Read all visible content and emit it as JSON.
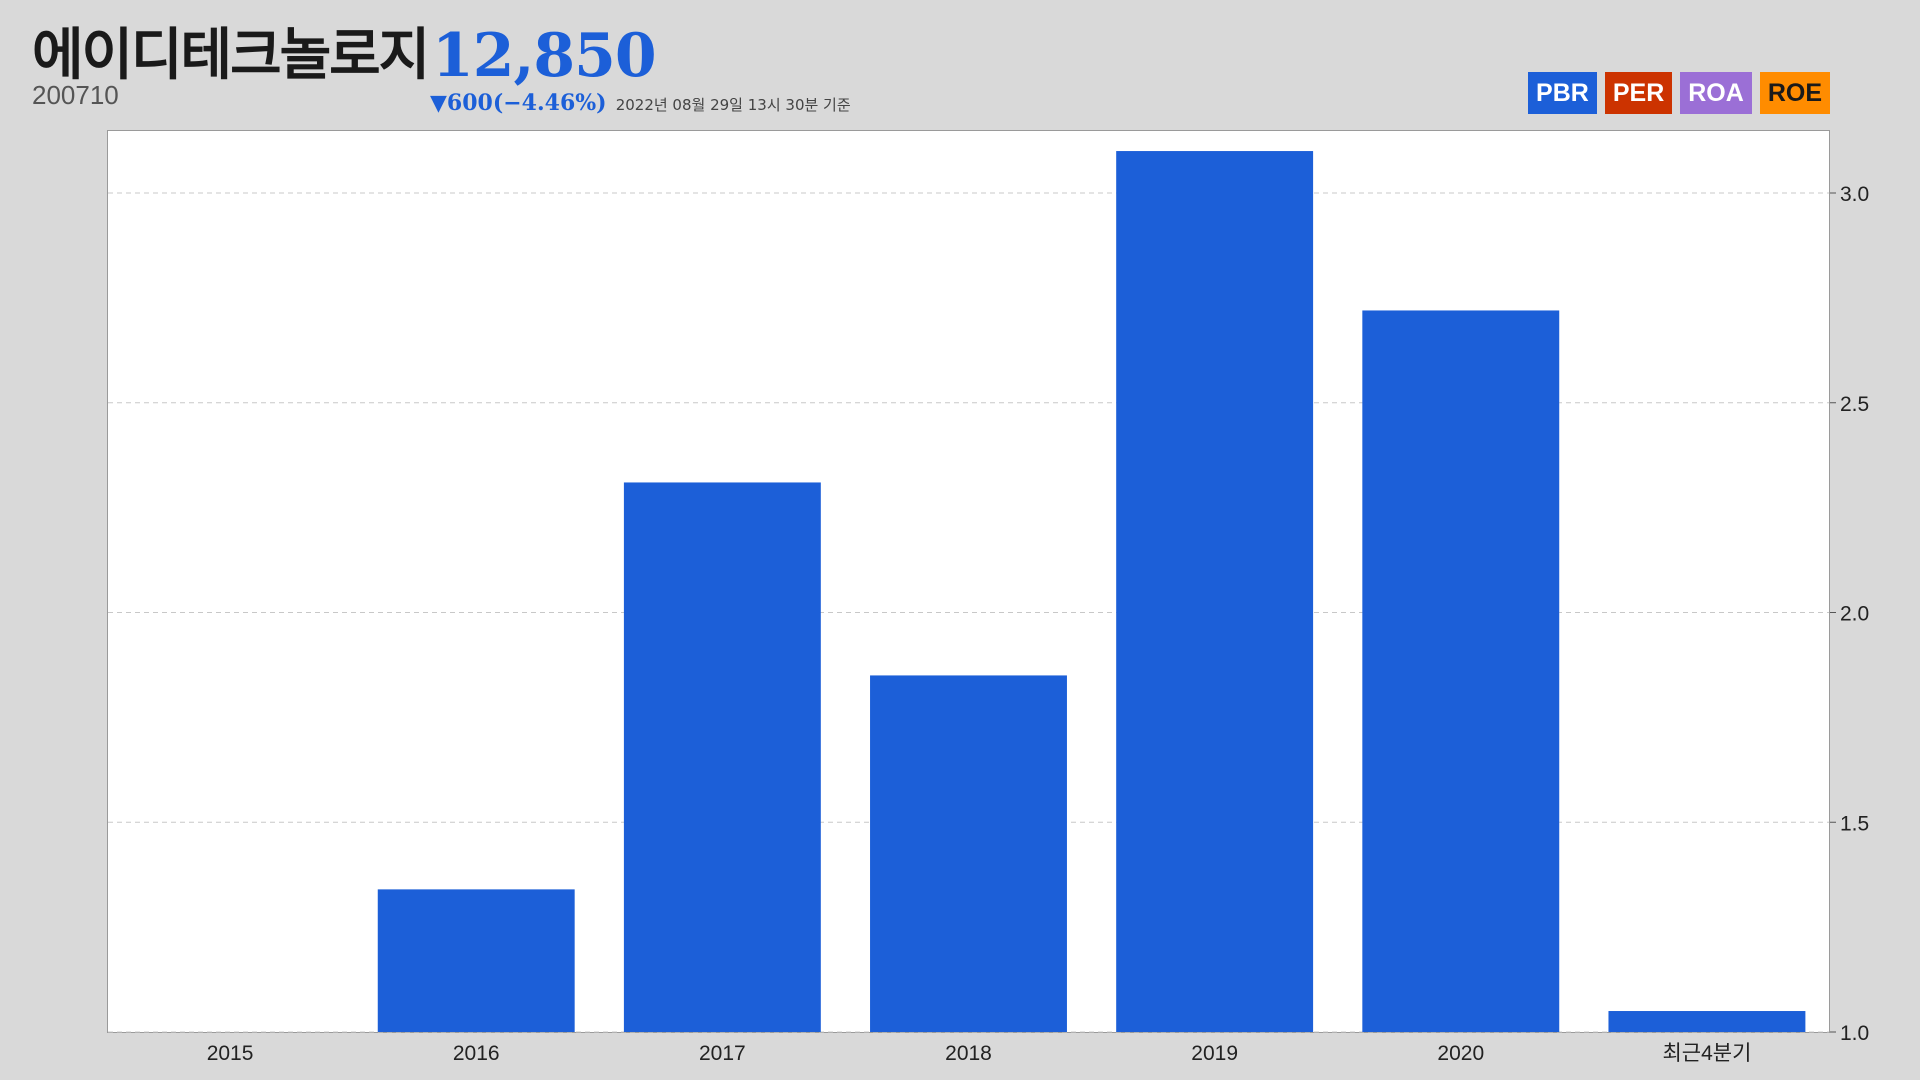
{
  "header": {
    "company": "에이디테크놀로지",
    "code": "200710",
    "price": "12,850",
    "change": "▼600(−4.46%)",
    "as_of": "2022년 08월 29일 13시 30분 기준"
  },
  "tabs": [
    {
      "label": "PBR",
      "bg": "#1c5fd8",
      "fg": "#ffffff"
    },
    {
      "label": "PER",
      "bg": "#cc3300",
      "fg": "#ffffff"
    },
    {
      "label": "ROA",
      "bg": "#9b6fd6",
      "fg": "#ffffff"
    },
    {
      "label": "ROE",
      "bg": "#ff8c00",
      "fg": "#1a1a1a"
    }
  ],
  "chart_data": {
    "type": "bar",
    "categories": [
      "2015",
      "2016",
      "2017",
      "2018",
      "2019",
      "2020",
      "최근4분기"
    ],
    "series": [
      {
        "values": [
          1.0,
          1.34,
          2.31,
          1.85,
          3.1,
          2.72,
          1.05
        ]
      }
    ],
    "ylim": [
      1.0,
      3.2
    ],
    "yticks": [
      "1.0",
      "1.5",
      "2.0",
      "2.5",
      "3.0"
    ],
    "yaxis_side": "right",
    "grid": true,
    "bar_color": "#1c5fd8"
  }
}
